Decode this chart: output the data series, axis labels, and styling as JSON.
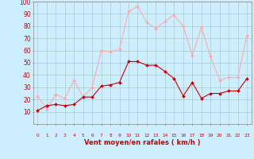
{
  "hours": [
    0,
    1,
    2,
    3,
    4,
    5,
    6,
    7,
    8,
    9,
    10,
    11,
    12,
    13,
    14,
    15,
    16,
    17,
    18,
    19,
    20,
    21,
    22,
    23
  ],
  "avg_wind": [
    11,
    15,
    16,
    15,
    16,
    22,
    22,
    31,
    32,
    34,
    51,
    51,
    48,
    48,
    43,
    37,
    23,
    34,
    21,
    25,
    25,
    27,
    27,
    37
  ],
  "gust_wind": [
    23,
    12,
    24,
    21,
    36,
    22,
    30,
    60,
    59,
    61,
    92,
    96,
    83,
    78,
    84,
    89,
    80,
    56,
    79,
    55,
    36,
    38,
    38,
    72
  ],
  "avg_color": "#cc0000",
  "gust_color": "#ffaaaa",
  "bg_color": "#cceeff",
  "grid_color": "#aacccc",
  "xlabel": "Vent moyen/en rafales ( km/h )",
  "xlabel_color": "#cc0000",
  "tick_color": "#cc0000",
  "ylim": [
    0,
    100
  ],
  "yticks": [
    10,
    20,
    30,
    40,
    50,
    60,
    70,
    80,
    90,
    100
  ]
}
